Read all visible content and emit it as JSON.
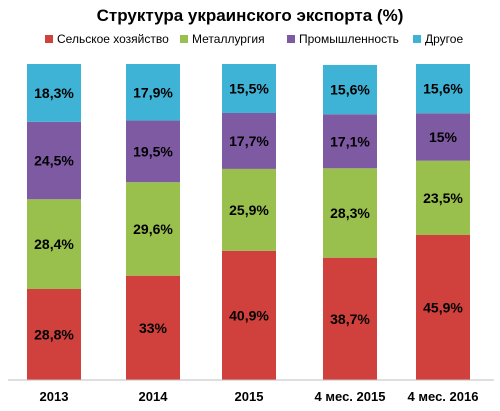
{
  "chart_data": {
    "type": "bar",
    "stacked": true,
    "title": "Структура украинского экспорта (%)",
    "xlabel": "",
    "ylabel": "",
    "ylim": [
      0,
      100
    ],
    "grid": false,
    "legend_position": "top",
    "categories": [
      "2013",
      "2014",
      "2015",
      "4 мес. 2015",
      "4 мес. 2016"
    ],
    "series": [
      {
        "name": "Сельское хозяйство",
        "color": "#d0413d",
        "values": [
          28.8,
          33,
          40.9,
          38.7,
          45.9
        ],
        "labels": [
          "28,8%",
          "33%",
          "40,9%",
          "38,7%",
          "45,9%"
        ]
      },
      {
        "name": "Металлургия",
        "color": "#99bf4d",
        "values": [
          28.4,
          29.6,
          25.9,
          28.3,
          23.5
        ],
        "labels": [
          "28,4%",
          "29,6%",
          "25,9%",
          "28,3%",
          "23,5%"
        ]
      },
      {
        "name": "Промышленность",
        "color": "#7e5aa2",
        "values": [
          24.5,
          19.5,
          17.7,
          17.1,
          15
        ],
        "labels": [
          "24,5%",
          "19,5%",
          "17,7%",
          "17,1%",
          "15%"
        ]
      },
      {
        "name": "Другое",
        "color": "#3fb3d6",
        "values": [
          18.3,
          17.9,
          15.5,
          15.6,
          15.6
        ],
        "labels": [
          "18,3%",
          "17,9%",
          "15,5%",
          "15,6%",
          "15,6%"
        ]
      }
    ]
  }
}
